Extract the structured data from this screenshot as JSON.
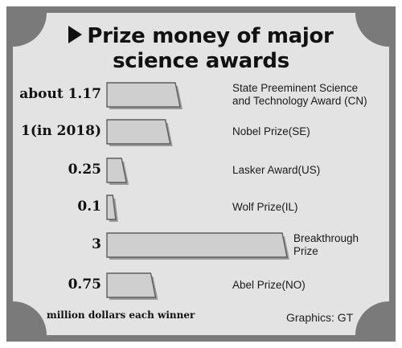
{
  "chart_data": {
    "type": "bar",
    "orientation": "horizontal",
    "title": "Prize money of major science awards",
    "title_lines": [
      "Prize money of major",
      "science awards"
    ],
    "unit_note": "million dollars each winner",
    "credit": "Graphics: GT",
    "categories": [
      [
        "State Preeminent Science",
        "and Technology Award (CN)"
      ],
      [
        "Nobel Prize(SE)"
      ],
      [
        "Lasker Award(US)"
      ],
      [
        "Wolf Prize(IL)"
      ],
      [
        "Breakthrough",
        "Prize"
      ],
      [
        "Abel Prize(NO)"
      ]
    ],
    "value_labels": [
      "about 1.17",
      "1(in 2018)",
      "0.25",
      "0.1",
      "3",
      "0.75"
    ],
    "values": [
      1.17,
      1,
      0.25,
      0.1,
      3,
      0.75
    ],
    "xlim": [
      0,
      3
    ],
    "grid": false,
    "legend": "none"
  },
  "colors": {
    "frame": "#7a7a7a",
    "panel": "#e3e3e3",
    "bar_fill": "#cfcfcf",
    "bar_stroke": "#5e5e5e",
    "bar_shadow": "#9a9a9a"
  },
  "icons": {
    "title_marker": "right-triangle-icon"
  }
}
